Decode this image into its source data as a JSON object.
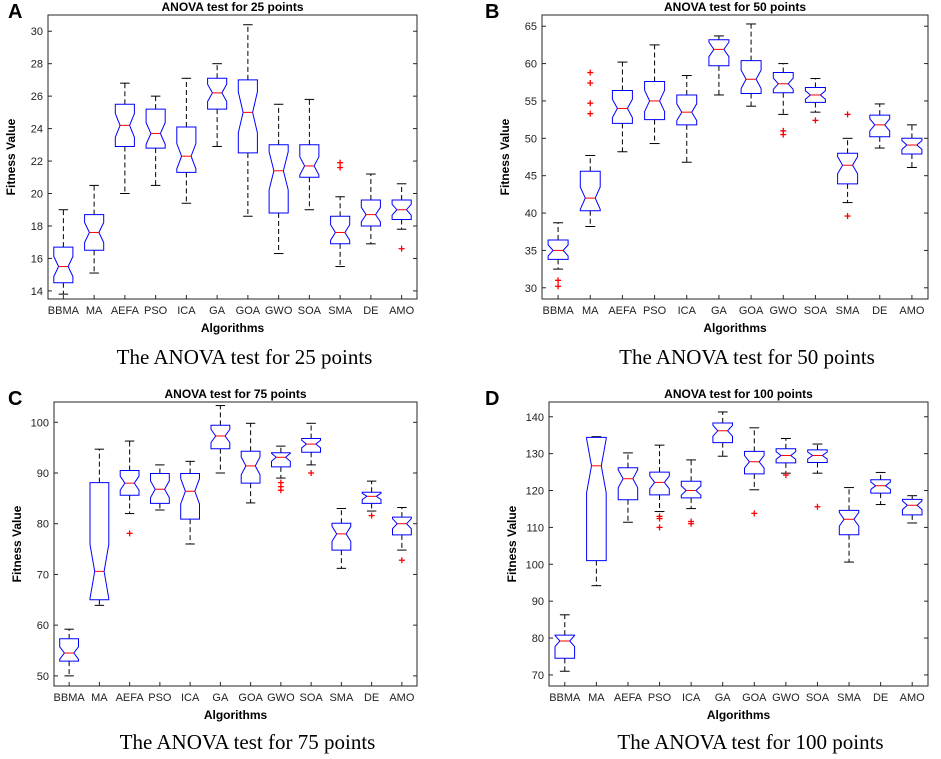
{
  "colors": {
    "box": "#0000ff",
    "median": "#ff0000",
    "outlier": "#ff0000",
    "whisker": "#000000"
  },
  "chart_data": [
    {
      "type": "box",
      "panel": "A",
      "title": "ANOVA test for 25 points",
      "xlabel": "Algorithms",
      "ylabel": "Fitness Value",
      "caption": "The ANOVA test for 25 points",
      "ylim": [
        13.5,
        31
      ],
      "yticks": [
        14,
        16,
        18,
        20,
        22,
        24,
        26,
        28,
        30
      ],
      "categories": [
        "BBMA",
        "MA",
        "AEFA",
        "PSO",
        "ICA",
        "GA",
        "GOA",
        "GWO",
        "SOA",
        "SMA",
        "DE",
        "AMO"
      ],
      "boxes": [
        {
          "min": 13.8,
          "q1": 14.5,
          "median": 15.5,
          "q3": 16.7,
          "max": 19.0,
          "outliers": []
        },
        {
          "min": 15.1,
          "q1": 16.5,
          "median": 17.6,
          "q3": 18.7,
          "max": 20.5,
          "outliers": []
        },
        {
          "min": 20.0,
          "q1": 22.9,
          "median": 24.2,
          "q3": 25.5,
          "max": 26.8,
          "outliers": []
        },
        {
          "min": 20.5,
          "q1": 22.8,
          "median": 23.7,
          "q3": 25.2,
          "max": 26.0,
          "outliers": []
        },
        {
          "min": 19.4,
          "q1": 21.3,
          "median": 22.3,
          "q3": 24.1,
          "max": 27.1,
          "outliers": []
        },
        {
          "min": 22.9,
          "q1": 25.2,
          "median": 26.2,
          "q3": 27.1,
          "max": 28.0,
          "outliers": []
        },
        {
          "min": 18.6,
          "q1": 22.5,
          "median": 25.0,
          "q3": 27.0,
          "max": 30.4,
          "outliers": []
        },
        {
          "min": 16.3,
          "q1": 18.8,
          "median": 21.4,
          "q3": 23.0,
          "max": 25.5,
          "outliers": []
        },
        {
          "min": 19.0,
          "q1": 21.0,
          "median": 21.7,
          "q3": 23.0,
          "max": 25.8,
          "outliers": []
        },
        {
          "min": 15.5,
          "q1": 16.9,
          "median": 17.6,
          "q3": 18.6,
          "max": 19.8,
          "outliers": [
            21.6,
            21.9
          ]
        },
        {
          "min": 16.9,
          "q1": 18.0,
          "median": 18.7,
          "q3": 19.6,
          "max": 21.2,
          "outliers": []
        },
        {
          "min": 17.8,
          "q1": 18.4,
          "median": 19.0,
          "q3": 19.6,
          "max": 20.6,
          "outliers": [
            16.6
          ]
        }
      ]
    },
    {
      "type": "box",
      "panel": "B",
      "title": "ANOVA test for 50 points",
      "xlabel": "Algorithms",
      "ylabel": "Fitness Value",
      "caption": "The ANOVA test for 50 points",
      "ylim": [
        28.5,
        66.5
      ],
      "yticks": [
        30,
        35,
        40,
        45,
        50,
        55,
        60,
        65
      ],
      "categories": [
        "BBMA",
        "MA",
        "AEFA",
        "PSO",
        "ICA",
        "GA",
        "GOA",
        "GWO",
        "SOA",
        "SMA",
        "DE",
        "AMO"
      ],
      "boxes": [
        {
          "min": 32.5,
          "q1": 33.8,
          "median": 35.0,
          "q3": 36.4,
          "max": 38.7,
          "outliers": [
            31.0,
            30.2
          ]
        },
        {
          "min": 38.2,
          "q1": 40.3,
          "median": 42.0,
          "q3": 45.6,
          "max": 47.7,
          "outliers": [
            53.3,
            54.7,
            57.4,
            58.8
          ]
        },
        {
          "min": 48.2,
          "q1": 52.0,
          "median": 54.0,
          "q3": 56.4,
          "max": 60.2,
          "outliers": []
        },
        {
          "min": 49.3,
          "q1": 52.5,
          "median": 55.0,
          "q3": 57.6,
          "max": 62.5,
          "outliers": []
        },
        {
          "min": 46.8,
          "q1": 51.8,
          "median": 53.5,
          "q3": 55.8,
          "max": 58.4,
          "outliers": []
        },
        {
          "min": 55.8,
          "q1": 59.7,
          "median": 61.9,
          "q3": 63.2,
          "max": 63.7,
          "outliers": []
        },
        {
          "min": 54.3,
          "q1": 56.0,
          "median": 57.9,
          "q3": 60.4,
          "max": 65.3,
          "outliers": []
        },
        {
          "min": 53.2,
          "q1": 56.1,
          "median": 57.3,
          "q3": 58.8,
          "max": 60.0,
          "outliers": [
            51.0,
            50.5
          ]
        },
        {
          "min": 53.5,
          "q1": 54.8,
          "median": 55.8,
          "q3": 56.8,
          "max": 58.0,
          "outliers": [
            52.4
          ]
        },
        {
          "min": 41.4,
          "q1": 43.9,
          "median": 46.4,
          "q3": 48.0,
          "max": 50.0,
          "outliers": [
            53.2,
            39.6
          ]
        },
        {
          "min": 48.7,
          "q1": 50.2,
          "median": 51.8,
          "q3": 53.1,
          "max": 54.6,
          "outliers": []
        },
        {
          "min": 46.1,
          "q1": 47.9,
          "median": 49.1,
          "q3": 50.0,
          "max": 51.8,
          "outliers": []
        }
      ]
    },
    {
      "type": "box",
      "panel": "C",
      "title": "ANOVA test for 75 points",
      "xlabel": "Algorithms",
      "ylabel": "Fitness Value",
      "caption": "The ANOVA test for 75 points",
      "ylim": [
        48,
        104
      ],
      "yticks": [
        50,
        60,
        70,
        80,
        90,
        100
      ],
      "categories": [
        "BBMA",
        "MA",
        "AEFA",
        "PSO",
        "ICA",
        "GA",
        "GOA",
        "GWO",
        "SOA",
        "SMA",
        "DE",
        "AMO"
      ],
      "boxes": [
        {
          "min": 50.0,
          "q1": 52.9,
          "median": 54.5,
          "q3": 57.3,
          "max": 59.2,
          "outliers": []
        },
        {
          "min": 63.9,
          "q1": 65.0,
          "median": 70.6,
          "q3": 88.1,
          "max": 94.7,
          "outliers": []
        },
        {
          "min": 82.0,
          "q1": 85.6,
          "median": 88.0,
          "q3": 90.5,
          "max": 96.3,
          "outliers": [
            78.1
          ]
        },
        {
          "min": 82.7,
          "q1": 84.0,
          "median": 86.8,
          "q3": 89.9,
          "max": 91.6,
          "outliers": []
        },
        {
          "min": 76.0,
          "q1": 80.9,
          "median": 86.4,
          "q3": 89.9,
          "max": 92.3,
          "outliers": []
        },
        {
          "min": 90.0,
          "q1": 94.8,
          "median": 97.3,
          "q3": 99.4,
          "max": 103.3,
          "outliers": []
        },
        {
          "min": 84.1,
          "q1": 88.0,
          "median": 91.4,
          "q3": 94.3,
          "max": 99.8,
          "outliers": []
        },
        {
          "min": 89.0,
          "q1": 91.2,
          "median": 93.1,
          "q3": 94.0,
          "max": 95.3,
          "outliers": [
            88.1,
            87.3,
            86.6
          ]
        },
        {
          "min": 91.6,
          "q1": 94.1,
          "median": 95.7,
          "q3": 96.8,
          "max": 99.8,
          "outliers": [
            90.0
          ]
        },
        {
          "min": 71.2,
          "q1": 74.8,
          "median": 78.0,
          "q3": 80.1,
          "max": 83.0,
          "outliers": []
        },
        {
          "min": 82.5,
          "q1": 84.0,
          "median": 85.4,
          "q3": 86.2,
          "max": 88.4,
          "outliers": [
            81.6
          ]
        },
        {
          "min": 74.8,
          "q1": 77.8,
          "median": 80.0,
          "q3": 81.3,
          "max": 83.2,
          "outliers": [
            72.8
          ]
        }
      ]
    },
    {
      "type": "box",
      "panel": "D",
      "title": "ANOVA test for 100 points",
      "xlabel": "Algorithms",
      "ylabel": "Fitness Value",
      "caption": "The ANOVA test for 100 points",
      "ylim": [
        67,
        144
      ],
      "yticks": [
        70,
        80,
        90,
        100,
        110,
        120,
        130,
        140
      ],
      "categories": [
        "BBMA",
        "MA",
        "AEFA",
        "PSO",
        "ICA",
        "GA",
        "GOA",
        "GWO",
        "SOA",
        "SMA",
        "DE",
        "AMO"
      ],
      "boxes": [
        {
          "min": 71.0,
          "q1": 74.5,
          "median": 79.2,
          "q3": 80.8,
          "max": 86.3,
          "outliers": []
        },
        {
          "min": 94.2,
          "q1": 101.0,
          "median": 126.7,
          "q3": 134.4,
          "max": 134.6,
          "outliers": []
        },
        {
          "min": 111.4,
          "q1": 117.5,
          "median": 123.2,
          "q3": 126.2,
          "max": 130.2,
          "outliers": []
        },
        {
          "min": 114.3,
          "q1": 118.8,
          "median": 122.2,
          "q3": 125.0,
          "max": 132.3,
          "outliers": [
            113.0,
            112.4,
            110.0
          ]
        },
        {
          "min": 115.1,
          "q1": 118.0,
          "median": 120.0,
          "q3": 122.5,
          "max": 128.3,
          "outliers": [
            111.6,
            111.0
          ]
        },
        {
          "min": 129.3,
          "q1": 133.0,
          "median": 136.2,
          "q3": 138.3,
          "max": 141.3,
          "outliers": []
        },
        {
          "min": 120.2,
          "q1": 124.5,
          "median": 127.8,
          "q3": 130.6,
          "max": 137.0,
          "outliers": [
            113.8
          ]
        },
        {
          "min": 124.7,
          "q1": 127.5,
          "median": 129.5,
          "q3": 131.3,
          "max": 134.1,
          "outliers": [
            124.2
          ]
        },
        {
          "min": 124.7,
          "q1": 127.6,
          "median": 129.5,
          "q3": 131.0,
          "max": 132.6,
          "outliers": [
            115.6
          ]
        },
        {
          "min": 100.6,
          "q1": 108.0,
          "median": 112.2,
          "q3": 114.6,
          "max": 120.8,
          "outliers": []
        },
        {
          "min": 116.2,
          "q1": 119.3,
          "median": 121.3,
          "q3": 122.9,
          "max": 124.9,
          "outliers": []
        },
        {
          "min": 111.2,
          "q1": 113.4,
          "median": 116.0,
          "q3": 117.6,
          "max": 118.6,
          "outliers": []
        }
      ]
    }
  ]
}
